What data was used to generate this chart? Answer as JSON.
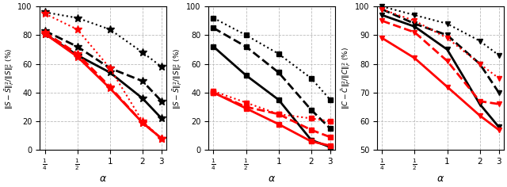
{
  "x_vals": [
    0.25,
    0.5,
    1,
    2,
    3
  ],
  "x_ticks": [
    0.25,
    0.5,
    1,
    2,
    3
  ],
  "x_ticklabels": [
    "$\\frac{1}{4}$",
    "$\\frac{1}{2}$",
    "1",
    "2",
    "3"
  ],
  "subplot1": {
    "ylabel": "$\\|S-\\bar{S}\\|_F^2/\\|S\\|_F^2$ (%)",
    "xlabel": "$\\alpha$",
    "ylim": [
      0,
      100
    ],
    "yticks": [
      0,
      20,
      40,
      60,
      80,
      100
    ],
    "series": [
      {
        "values": [
          96,
          92,
          84,
          68,
          58
        ],
        "color": "black",
        "linestyle": "dotted",
        "marker": "*",
        "lw": 1.5
      },
      {
        "values": [
          83,
          72,
          57,
          48,
          34
        ],
        "color": "black",
        "linestyle": "dashed",
        "marker": "*",
        "lw": 2.0
      },
      {
        "values": [
          81,
          66,
          54,
          36,
          22
        ],
        "color": "black",
        "linestyle": "solid",
        "marker": "*",
        "lw": 2.0
      },
      {
        "values": [
          95,
          84,
          57,
          20,
          8
        ],
        "color": "red",
        "linestyle": "dotted",
        "marker": "*",
        "lw": 1.5
      },
      {
        "values": [
          82,
          67,
          44,
          19,
          8
        ],
        "color": "red",
        "linestyle": "dashed",
        "marker": "*",
        "lw": 2.0
      },
      {
        "values": [
          81,
          65,
          43,
          19,
          8
        ],
        "color": "red",
        "linestyle": "solid",
        "marker": "*",
        "lw": 2.0
      }
    ]
  },
  "subplot2": {
    "ylabel": "$\\|S-\\bar{S}\\|_F^2/\\|S\\|_F^2$ (%)",
    "xlabel": "$\\alpha$",
    "ylim": [
      0,
      100
    ],
    "yticks": [
      0,
      20,
      40,
      60,
      80,
      100
    ],
    "series": [
      {
        "values": [
          92,
          80,
          67,
          50,
          35
        ],
        "color": "black",
        "linestyle": "dotted",
        "marker": "s",
        "lw": 1.5
      },
      {
        "values": [
          85,
          72,
          54,
          28,
          15
        ],
        "color": "black",
        "linestyle": "dashed",
        "marker": "s",
        "lw": 2.0
      },
      {
        "values": [
          72,
          52,
          35,
          7,
          2
        ],
        "color": "black",
        "linestyle": "solid",
        "marker": "s",
        "lw": 2.0
      },
      {
        "values": [
          41,
          33,
          25,
          22,
          20
        ],
        "color": "red",
        "linestyle": "dotted",
        "marker": "s",
        "lw": 1.5
      },
      {
        "values": [
          40,
          30,
          25,
          14,
          9
        ],
        "color": "red",
        "linestyle": "dashed",
        "marker": "s",
        "lw": 2.0
      },
      {
        "values": [
          40,
          29,
          18,
          6,
          3
        ],
        "color": "red",
        "linestyle": "solid",
        "marker": "s",
        "lw": 2.0
      }
    ]
  },
  "subplot3": {
    "ylabel": "$\\|C-\\bar{C}\\|_F^2/\\|C\\|_F^2$ (%)",
    "xlabel": "$\\alpha$",
    "ylim": [
      50,
      100
    ],
    "yticks": [
      50,
      60,
      70,
      80,
      90,
      100
    ],
    "series": [
      {
        "values": [
          100,
          97,
          94,
          88,
          83
        ],
        "color": "black",
        "linestyle": "dotted",
        "marker": "v",
        "lw": 1.5
      },
      {
        "values": [
          99,
          94,
          90,
          80,
          70
        ],
        "color": "black",
        "linestyle": "dashed",
        "marker": "v",
        "lw": 2.0
      },
      {
        "values": [
          97,
          93,
          85,
          66,
          58
        ],
        "color": "black",
        "linestyle": "solid",
        "marker": "v",
        "lw": 2.0
      },
      {
        "values": [
          99,
          95,
          89,
          80,
          75
        ],
        "color": "red",
        "linestyle": "dotted",
        "marker": "v",
        "lw": 1.5
      },
      {
        "values": [
          95,
          91,
          81,
          67,
          66
        ],
        "color": "red",
        "linestyle": "dashed",
        "marker": "v",
        "lw": 2.0
      },
      {
        "values": [
          89,
          82,
          72,
          62,
          57
        ],
        "color": "red",
        "linestyle": "solid",
        "marker": "v",
        "lw": 2.0
      }
    ]
  }
}
